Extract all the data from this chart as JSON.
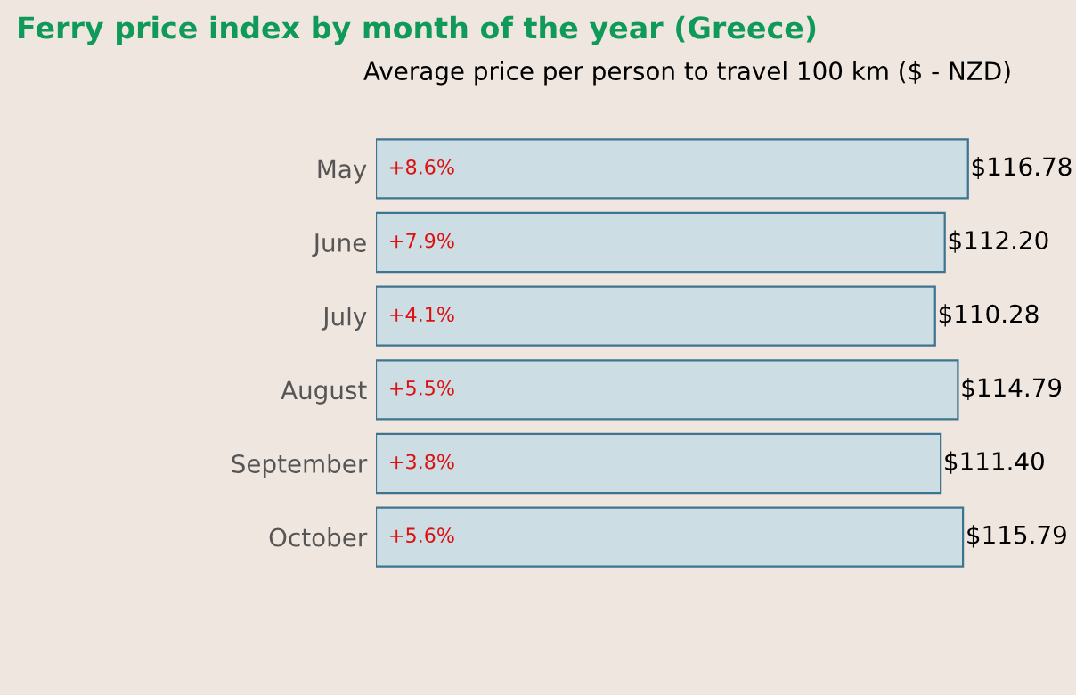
{
  "chart_data": {
    "type": "bar",
    "orientation": "horizontal",
    "title": "Ferry price index by month of the year (Greece)",
    "subtitle": "Average price per person to travel 100 km ($ - NZD)",
    "categories": [
      "May",
      "June",
      "July",
      "August",
      "September",
      "October"
    ],
    "values": [
      116.78,
      112.2,
      110.28,
      114.79,
      111.4,
      115.79
    ],
    "value_labels": [
      "$116.78",
      "$112.20",
      "$110.28",
      "$114.79",
      "$111.40",
      "$115.79"
    ],
    "color": "#ccdde3",
    "xlim": [
      0,
      117
    ],
    "tick_labels": "y",
    "annotations": [
      {
        "text": "+8.6%",
        "y": "May"
      },
      {
        "text": "+7.9%",
        "y": "June"
      },
      {
        "text": "+4.1%",
        "y": "July"
      },
      {
        "text": "+5.5%",
        "y": "August"
      },
      {
        "text": "+3.8%",
        "y": "September"
      },
      {
        "text": "+5.6%",
        "y": "October"
      }
    ]
  }
}
